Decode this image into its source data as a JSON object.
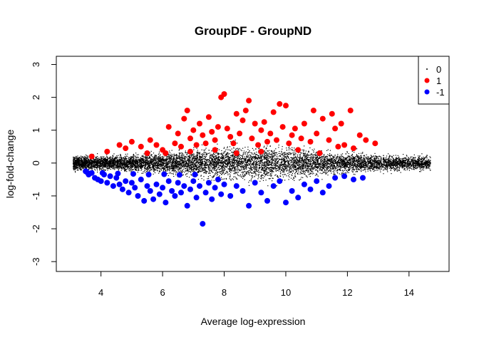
{
  "chart_data": {
    "type": "scatter",
    "title": "GroupDF - GroupND",
    "xlabel": "Average log-expression",
    "ylabel": "log-fold-change",
    "xlim": [
      2.55,
      15.3
    ],
    "ylim": [
      -3.3,
      3.25
    ],
    "x_ticks": [
      4,
      6,
      8,
      10,
      12,
      14
    ],
    "y_ticks": [
      -3,
      -2,
      -1,
      0,
      1,
      2,
      3
    ],
    "grid": false,
    "legend": {
      "position": "top-right",
      "entries": [
        {
          "label": "0",
          "color": "#000000",
          "marker": "small-dot"
        },
        {
          "label": "1",
          "color": "#ff0000",
          "marker": "large-dot"
        },
        {
          "label": "-1",
          "color": "#0000ff",
          "marker": "large-dot"
        }
      ]
    },
    "series": [
      {
        "name": "1",
        "color": "#ff0000",
        "points": [
          [
            3.7,
            0.2
          ],
          [
            4.2,
            0.35
          ],
          [
            4.6,
            0.55
          ],
          [
            4.8,
            0.45
          ],
          [
            5.0,
            0.65
          ],
          [
            5.3,
            0.5
          ],
          [
            5.6,
            0.7
          ],
          [
            5.8,
            0.55
          ],
          [
            6.0,
            0.4
          ],
          [
            6.2,
            1.1
          ],
          [
            6.4,
            0.6
          ],
          [
            6.5,
            0.9
          ],
          [
            6.6,
            0.5
          ],
          [
            6.7,
            1.35
          ],
          [
            6.8,
            1.6
          ],
          [
            6.9,
            0.75
          ],
          [
            7.0,
            1.0
          ],
          [
            7.1,
            0.55
          ],
          [
            7.2,
            1.2
          ],
          [
            7.3,
            0.85
          ],
          [
            7.4,
            0.6
          ],
          [
            7.5,
            1.4
          ],
          [
            7.6,
            0.95
          ],
          [
            7.7,
            0.7
          ],
          [
            7.8,
            1.1
          ],
          [
            7.9,
            2.0
          ],
          [
            8.0,
            2.1
          ],
          [
            8.1,
            1.05
          ],
          [
            8.2,
            0.8
          ],
          [
            8.3,
            0.6
          ],
          [
            8.4,
            1.5
          ],
          [
            8.5,
            0.9
          ],
          [
            8.6,
            1.3
          ],
          [
            8.7,
            1.6
          ],
          [
            8.8,
            1.9
          ],
          [
            8.9,
            0.75
          ],
          [
            9.0,
            1.2
          ],
          [
            9.1,
            0.55
          ],
          [
            9.2,
            1.0
          ],
          [
            9.3,
            1.25
          ],
          [
            9.4,
            0.65
          ],
          [
            9.5,
            0.9
          ],
          [
            9.6,
            1.55
          ],
          [
            9.7,
            0.7
          ],
          [
            9.8,
            1.8
          ],
          [
            9.9,
            1.1
          ],
          [
            10.0,
            1.75
          ],
          [
            10.1,
            0.6
          ],
          [
            10.2,
            0.85
          ],
          [
            10.3,
            1.05
          ],
          [
            10.5,
            0.75
          ],
          [
            10.6,
            1.2
          ],
          [
            10.8,
            0.65
          ],
          [
            10.9,
            1.6
          ],
          [
            11.0,
            0.9
          ],
          [
            11.2,
            1.35
          ],
          [
            11.4,
            0.7
          ],
          [
            11.5,
            1.5
          ],
          [
            11.6,
            1.05
          ],
          [
            11.8,
            1.2
          ],
          [
            11.9,
            0.55
          ],
          [
            12.1,
            1.6
          ],
          [
            12.4,
            0.85
          ],
          [
            12.6,
            0.7
          ],
          [
            12.9,
            0.6
          ],
          [
            5.5,
            0.3
          ],
          [
            6.1,
            0.3
          ],
          [
            6.9,
            0.35
          ],
          [
            7.7,
            0.4
          ],
          [
            8.4,
            0.3
          ],
          [
            9.2,
            0.35
          ],
          [
            10.4,
            0.4
          ],
          [
            11.1,
            0.3
          ],
          [
            11.7,
            0.5
          ],
          [
            12.2,
            0.45
          ]
        ]
      },
      {
        "name": "-1",
        "color": "#0000ff",
        "points": [
          [
            3.5,
            -0.25
          ],
          [
            3.6,
            -0.35
          ],
          [
            3.7,
            -0.3
          ],
          [
            3.8,
            -0.45
          ],
          [
            3.9,
            -0.5
          ],
          [
            4.0,
            -0.55
          ],
          [
            4.1,
            -0.35
          ],
          [
            4.2,
            -0.6
          ],
          [
            4.3,
            -0.4
          ],
          [
            4.4,
            -0.7
          ],
          [
            4.5,
            -0.45
          ],
          [
            4.6,
            -0.65
          ],
          [
            4.7,
            -0.8
          ],
          [
            4.8,
            -0.55
          ],
          [
            4.9,
            -0.9
          ],
          [
            5.0,
            -0.6
          ],
          [
            5.1,
            -0.75
          ],
          [
            5.2,
            -1.0
          ],
          [
            5.3,
            -0.5
          ],
          [
            5.4,
            -1.15
          ],
          [
            5.5,
            -0.7
          ],
          [
            5.6,
            -0.85
          ],
          [
            5.7,
            -1.1
          ],
          [
            5.8,
            -0.65
          ],
          [
            5.9,
            -0.95
          ],
          [
            6.0,
            -0.75
          ],
          [
            6.1,
            -1.2
          ],
          [
            6.2,
            -0.55
          ],
          [
            6.3,
            -0.85
          ],
          [
            6.4,
            -1.0
          ],
          [
            6.5,
            -0.6
          ],
          [
            6.6,
            -0.9
          ],
          [
            6.7,
            -0.7
          ],
          [
            6.8,
            -1.3
          ],
          [
            6.9,
            -0.8
          ],
          [
            7.0,
            -0.55
          ],
          [
            7.1,
            -1.05
          ],
          [
            7.2,
            -0.7
          ],
          [
            7.3,
            -1.85
          ],
          [
            7.4,
            -0.9
          ],
          [
            7.5,
            -0.6
          ],
          [
            7.6,
            -1.1
          ],
          [
            7.7,
            -0.75
          ],
          [
            7.8,
            -0.5
          ],
          [
            7.9,
            -0.95
          ],
          [
            8.0,
            -0.65
          ],
          [
            8.2,
            -1.0
          ],
          [
            8.4,
            -0.7
          ],
          [
            8.6,
            -0.85
          ],
          [
            8.8,
            -1.3
          ],
          [
            9.0,
            -0.6
          ],
          [
            9.2,
            -0.9
          ],
          [
            9.4,
            -1.15
          ],
          [
            9.6,
            -0.7
          ],
          [
            9.8,
            -0.55
          ],
          [
            10.0,
            -1.2
          ],
          [
            10.2,
            -0.85
          ],
          [
            10.4,
            -1.05
          ],
          [
            10.6,
            -0.65
          ],
          [
            10.8,
            -0.8
          ],
          [
            11.0,
            -0.55
          ],
          [
            11.2,
            -0.9
          ],
          [
            11.4,
            -0.7
          ],
          [
            11.6,
            -0.45
          ],
          [
            11.9,
            -0.4
          ],
          [
            12.2,
            -0.5
          ],
          [
            12.5,
            -0.45
          ],
          [
            3.55,
            -0.28
          ],
          [
            4.05,
            -0.3
          ],
          [
            4.55,
            -0.32
          ],
          [
            5.05,
            -0.33
          ],
          [
            5.55,
            -0.35
          ],
          [
            6.05,
            -0.34
          ],
          [
            6.55,
            -0.36
          ],
          [
            7.05,
            -0.35
          ]
        ]
      }
    ]
  }
}
